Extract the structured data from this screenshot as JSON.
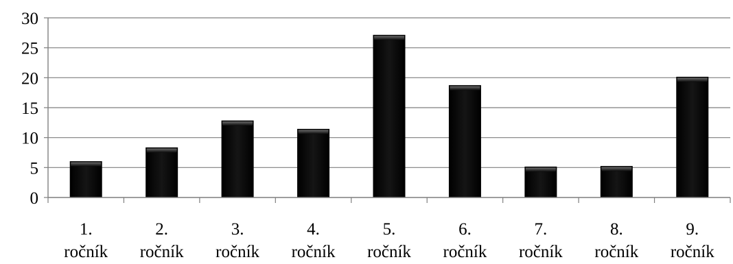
{
  "chart_data": {
    "type": "bar",
    "categories": [
      [
        "1.",
        "ročník"
      ],
      [
        "2.",
        "ročník"
      ],
      [
        "3.",
        "ročník"
      ],
      [
        "4.",
        "ročník"
      ],
      [
        "5.",
        "ročník"
      ],
      [
        "6.",
        "ročník"
      ],
      [
        "7.",
        "ročník"
      ],
      [
        "8.",
        "ročník"
      ],
      [
        "9.",
        "ročník"
      ]
    ],
    "values": [
      6,
      8.3,
      12.8,
      11.4,
      27.1,
      18.7,
      5.1,
      5.2,
      20.1
    ],
    "title": "",
    "xlabel": "",
    "ylabel": "",
    "ylim": [
      0,
      30
    ],
    "yticks": [
      "0",
      "5",
      "10",
      "15",
      "20",
      "25",
      "30"
    ],
    "grid": "horizontal",
    "bar_color": "#0a0a0a",
    "grid_color": "#7f7f7f"
  }
}
